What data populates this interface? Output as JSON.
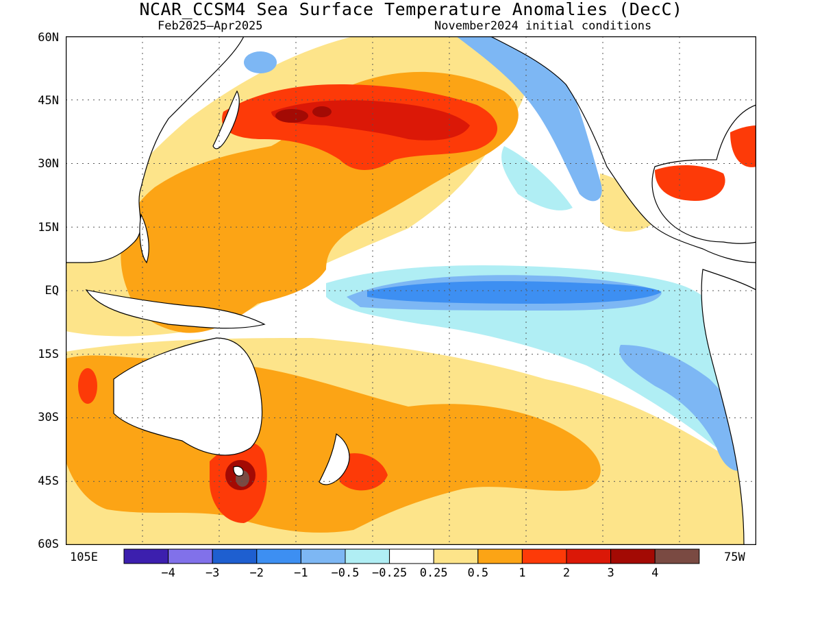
{
  "title": "NCAR_CCSM4 Sea Surface Temperature Anomalies (DecC)",
  "subtitle_left": "Feb2025–Apr2025",
  "subtitle_right": "November2024 initial conditions",
  "lat_labels": [
    "60N",
    "45N",
    "30N",
    "15N",
    "EQ",
    "15S",
    "30S",
    "45S",
    "60S"
  ],
  "lon_labels": {
    "left": "105E",
    "right": "75W"
  },
  "colorbar": {
    "colors": [
      "#3c1fae",
      "#8171ea",
      "#1e5fd0",
      "#3d8ff2",
      "#7db7f4",
      "#b0eef4",
      "#ffffff",
      "#fde48a",
      "#fca415",
      "#fd3a08",
      "#db1807",
      "#a30a04",
      "#7a4a42"
    ],
    "labels": [
      "−4",
      "−3",
      "−2",
      "−1",
      "−0.5",
      "−0.25",
      "0.25",
      "0.5",
      "1",
      "2",
      "3",
      "4"
    ]
  }
}
